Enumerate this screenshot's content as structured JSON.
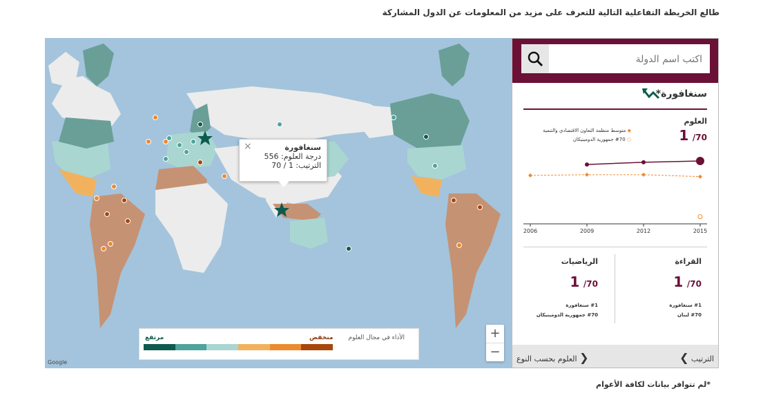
{
  "intro": "طالع الخريطة التفاعلية التالية للتعرف على مزيد من المعلومات عن الدول المشاركة",
  "tooltip": {
    "title": "سنغافورة",
    "score_line": "درجة العلوم: 556",
    "rank_line": "الترتيب: 1 / 70",
    "close": "×"
  },
  "zoom": {
    "plus": "+",
    "minus": "−"
  },
  "legend": {
    "title": "الأداء في مجال العلوم",
    "low": "منخفض",
    "high": "مرتفع",
    "colors": [
      "#0e5a4e",
      "#4ea39c",
      "#a9d6d1",
      "#f2b25d",
      "#ee8a2e",
      "#a8470c"
    ]
  },
  "map_attribution": "Google",
  "search": {
    "placeholder": "اكتب اسم الدولة",
    "icon": "search-icon"
  },
  "country": {
    "name": "سنغافورة*",
    "icon": "trend-arrow-icon"
  },
  "science": {
    "label": "العلوم",
    "rank": "1",
    "total": "/70",
    "legend_avg": "متوسط منظمة التعاون الاقتصادي والتنمية",
    "legend_last": "#70 جمهورية الدومينيكان"
  },
  "chart_data": {
    "type": "line",
    "x": [
      "2006",
      "2009",
      "2012",
      "2015"
    ],
    "series": [
      {
        "name": "",
        "values": [
          null,
          542,
          551,
          556
        ],
        "color": "#6b1036"
      },
      {
        "name": "متوسط منظمة التعاون الاقتصادي والتنمية",
        "values": [
          498,
          501,
          501,
          493
        ],
        "color": "#ee8a2e"
      },
      {
        "name": "#70 جمهورية الدومينيكان",
        "values": [
          null,
          null,
          null,
          332
        ],
        "color": "#ee8a2e"
      }
    ],
    "ylim": [
      320,
      570
    ]
  },
  "reading": {
    "label": "القراءة",
    "rank": "1",
    "total": "/70",
    "best": "#1 سنغافورة",
    "worst": "#70 لبنان"
  },
  "math": {
    "label": "الرياضيات",
    "rank": "1",
    "total": "/70",
    "best": "#1 سنغافورة",
    "worst": "#70 جمهورية الدومينيكان"
  },
  "footer": {
    "ranking": "الترتيب",
    "by_type": "العلوم بحسب النوع"
  },
  "note": "*لم تتوافر بيانات لكافة الأعوام"
}
